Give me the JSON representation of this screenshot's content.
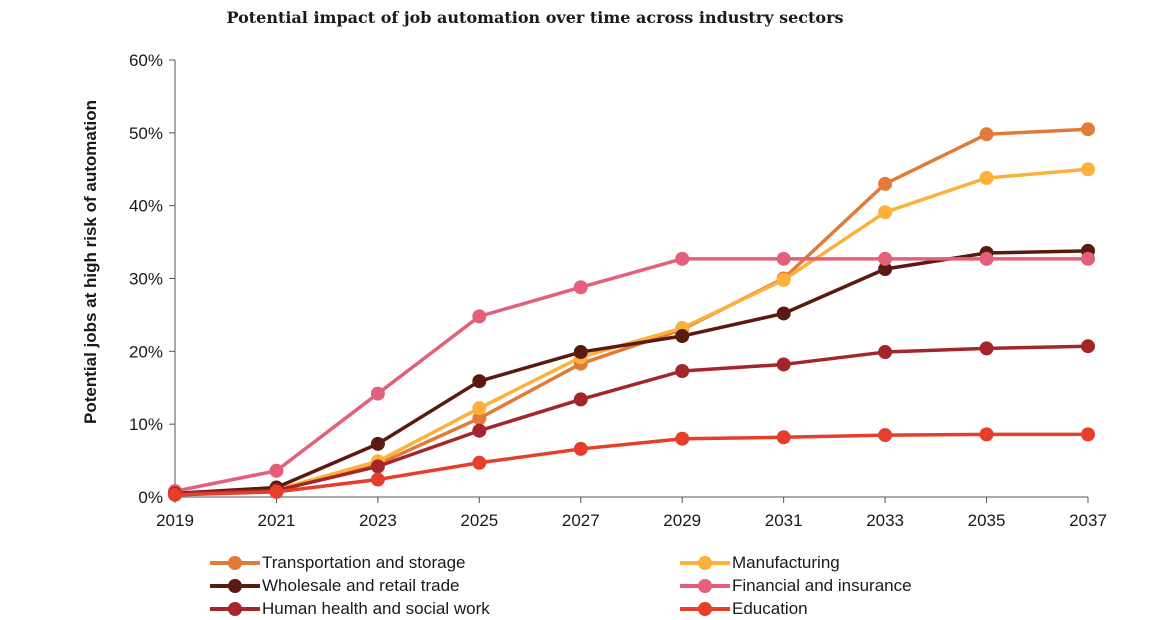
{
  "chart_data": {
    "type": "line",
    "title": "Potential impact of job automation over time across industry sectors",
    "ylabel": "Potential jobs at high risk of automation",
    "xlabel": "",
    "x": [
      2019,
      2021,
      2023,
      2025,
      2027,
      2029,
      2031,
      2033,
      2035,
      2037
    ],
    "x_tick_labels": [
      "2019",
      "2021",
      "2023",
      "2025",
      "2027",
      "2029",
      "2031",
      "2033",
      "2035",
      "2037"
    ],
    "ylim": [
      0,
      60
    ],
    "y_ticks": [
      0,
      10,
      20,
      30,
      40,
      50,
      60
    ],
    "y_tick_labels": [
      "0%",
      "10%",
      "20%",
      "30%",
      "40%",
      "50%",
      "60%"
    ],
    "grid": false,
    "legend_position": "bottom",
    "series": [
      {
        "name": "Transportation and storage",
        "color": "#e07b39",
        "values": [
          0.5,
          1.0,
          4.5,
          10.8,
          18.3,
          23.0,
          30.0,
          43.0,
          49.8,
          50.5
        ]
      },
      {
        "name": "Manufacturing",
        "color": "#fbb13c",
        "values": [
          0.5,
          1.0,
          4.9,
          12.2,
          19.2,
          23.2,
          29.8,
          39.1,
          43.8,
          45.0
        ]
      },
      {
        "name": "Wholesale and retail trade",
        "color": "#5a1a10",
        "values": [
          0.5,
          1.3,
          7.3,
          15.9,
          19.9,
          22.1,
          25.2,
          31.3,
          33.5,
          33.8
        ]
      },
      {
        "name": "Financial and insurance",
        "color": "#e35f7a",
        "values": [
          0.8,
          3.6,
          14.2,
          24.8,
          28.8,
          32.7,
          32.7,
          32.7,
          32.7,
          32.7
        ]
      },
      {
        "name": "Human health and social work",
        "color": "#a3262a",
        "values": [
          0.5,
          0.9,
          4.2,
          9.1,
          13.4,
          17.3,
          18.2,
          19.9,
          20.4,
          20.7
        ]
      },
      {
        "name": "Education",
        "color": "#e63e2a",
        "values": [
          0.3,
          0.7,
          2.4,
          4.7,
          6.6,
          8.0,
          8.2,
          8.5,
          8.6,
          8.6
        ]
      }
    ]
  }
}
